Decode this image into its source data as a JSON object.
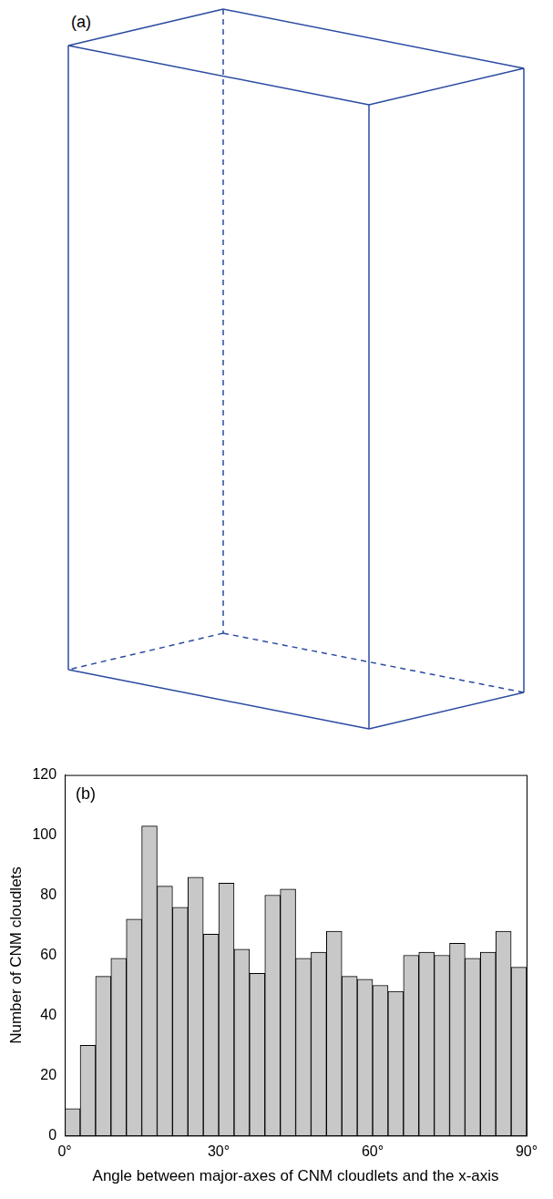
{
  "panel_a": {
    "label": "(a)"
  },
  "chart_data": {
    "type": "histogram",
    "annotation": "(b)",
    "x_label": "Angle between major-axes of CNM cloudlets and the x-axis",
    "y_label": "Number of CNM cloudlets",
    "bins": [
      0,
      3,
      6,
      9,
      12,
      15,
      18,
      21,
      24,
      27,
      30,
      33,
      36,
      39,
      42,
      45,
      48,
      51,
      54,
      57,
      60,
      63,
      66,
      69,
      72,
      75,
      78,
      81,
      84,
      87,
      90
    ],
    "counts": [
      9,
      30,
      53,
      59,
      72,
      103,
      83,
      76,
      86,
      67,
      84,
      62,
      54,
      80,
      82,
      59,
      61,
      68,
      53,
      52,
      50,
      48,
      60,
      61,
      60,
      64,
      59,
      61,
      68,
      56
    ],
    "color": "#c8c8c8",
    "xlim": [
      0,
      90
    ],
    "xticks": [
      {
        "value": 0,
        "label": "0°"
      },
      {
        "value": 30,
        "label": "30°"
      },
      {
        "value": 60,
        "label": "60°"
      },
      {
        "value": 90,
        "label": "90°"
      }
    ],
    "ylim": [
      0,
      120
    ],
    "yticks": [
      0,
      20,
      40,
      60,
      80,
      100,
      120
    ],
    "grid": false
  }
}
